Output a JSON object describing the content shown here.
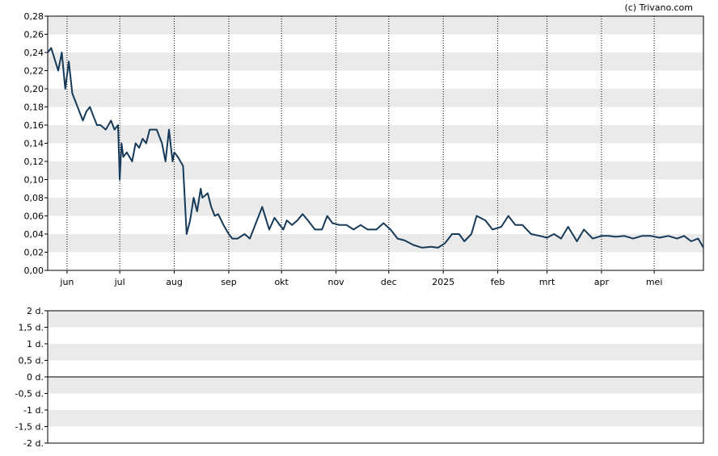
{
  "credit": "(c) Trivano.com",
  "colors": {
    "line": "#163a57",
    "band": "#eaeaea",
    "frame": "#000000",
    "background": "#ffffff"
  },
  "chart_data": [
    {
      "type": "line",
      "title": "",
      "xlabel": "",
      "ylabel": "",
      "grid": true,
      "x_tick_labels": [
        "jun",
        "jul",
        "aug",
        "sep",
        "okt",
        "nov",
        "dec",
        "2025",
        "feb",
        "mrt",
        "apr",
        "mei"
      ],
      "y_tick_labels": [
        "0,00",
        "0,02",
        "0,04",
        "0,06",
        "0,08",
        "0,10",
        "0,12",
        "0,14",
        "0,16",
        "0,18",
        "0,20",
        "0,22",
        "0,24",
        "0,26",
        "0,28"
      ],
      "ylim": [
        0,
        0.28
      ],
      "xlim": [
        "2024-05-21",
        "2025-05-29"
      ],
      "series": [
        {
          "x": [
            "2024-05-21",
            "2024-05-23",
            "2024-05-27",
            "2024-05-29",
            "2024-05-31",
            "2024-06-02",
            "2024-06-04",
            "2024-06-06",
            "2024-06-08",
            "2024-06-10",
            "2024-06-12",
            "2024-06-14",
            "2024-06-16",
            "2024-06-18",
            "2024-06-20",
            "2024-06-23",
            "2024-06-26",
            "2024-06-28",
            "2024-06-30",
            "2024-07-01",
            "2024-07-02",
            "2024-07-03",
            "2024-07-05",
            "2024-07-08",
            "2024-07-10",
            "2024-07-12",
            "2024-07-14",
            "2024-07-16",
            "2024-07-18",
            "2024-07-22",
            "2024-07-25",
            "2024-07-27",
            "2024-07-29",
            "2024-07-31",
            "2024-08-01",
            "2024-08-03",
            "2024-08-06",
            "2024-08-08",
            "2024-08-10",
            "2024-08-12",
            "2024-08-14",
            "2024-08-16",
            "2024-08-17",
            "2024-08-20",
            "2024-08-22",
            "2024-08-24",
            "2024-08-26",
            "2024-08-29",
            "2024-09-01",
            "2024-09-03",
            "2024-09-06",
            "2024-09-10",
            "2024-09-13",
            "2024-09-16",
            "2024-09-20",
            "2024-09-24",
            "2024-09-27",
            "2024-09-30",
            "2024-10-02",
            "2024-10-04",
            "2024-10-07",
            "2024-10-10",
            "2024-10-13",
            "2024-10-16",
            "2024-10-20",
            "2024-10-24",
            "2024-10-27",
            "2024-10-30",
            "2024-11-03",
            "2024-11-07",
            "2024-11-11",
            "2024-11-15",
            "2024-11-19",
            "2024-11-24",
            "2024-11-28",
            "2024-12-02",
            "2024-12-06",
            "2024-12-10",
            "2024-12-15",
            "2024-12-20",
            "2024-12-25",
            "2024-12-29",
            "2025-01-02",
            "2025-01-06",
            "2025-01-10",
            "2025-01-13",
            "2025-01-17",
            "2025-01-20",
            "2025-01-25",
            "2025-01-29",
            "2025-02-03",
            "2025-02-07",
            "2025-02-11",
            "2025-02-15",
            "2025-02-20",
            "2025-02-25",
            "2025-03-01",
            "2025-03-05",
            "2025-03-09",
            "2025-03-13",
            "2025-03-18",
            "2025-03-22",
            "2025-03-27",
            "2025-04-01",
            "2025-04-05",
            "2025-04-09",
            "2025-04-14",
            "2025-04-19",
            "2025-04-24",
            "2025-04-29",
            "2025-05-04",
            "2025-05-09",
            "2025-05-14",
            "2025-05-18",
            "2025-05-22",
            "2025-05-26",
            "2025-05-29"
          ],
          "y": [
            0.24,
            0.245,
            0.22,
            0.24,
            0.2,
            0.23,
            0.195,
            0.185,
            0.175,
            0.165,
            0.175,
            0.18,
            0.17,
            0.16,
            0.16,
            0.155,
            0.165,
            0.155,
            0.16,
            0.1,
            0.14,
            0.125,
            0.13,
            0.12,
            0.14,
            0.135,
            0.145,
            0.14,
            0.155,
            0.155,
            0.14,
            0.12,
            0.155,
            0.12,
            0.13,
            0.125,
            0.115,
            0.04,
            0.055,
            0.08,
            0.065,
            0.09,
            0.08,
            0.085,
            0.07,
            0.06,
            0.062,
            0.05,
            0.04,
            0.035,
            0.035,
            0.04,
            0.035,
            0.05,
            0.07,
            0.045,
            0.058,
            0.05,
            0.045,
            0.055,
            0.05,
            0.055,
            0.062,
            0.055,
            0.045,
            0.045,
            0.06,
            0.052,
            0.05,
            0.05,
            0.045,
            0.05,
            0.045,
            0.045,
            0.052,
            0.045,
            0.035,
            0.033,
            0.028,
            0.025,
            0.026,
            0.025,
            0.03,
            0.04,
            0.04,
            0.032,
            0.04,
            0.06,
            0.055,
            0.045,
            0.048,
            0.06,
            0.05,
            0.05,
            0.04,
            0.038,
            0.036,
            0.04,
            0.035,
            0.048,
            0.032,
            0.045,
            0.035,
            0.038,
            0.038,
            0.037,
            0.038,
            0.035,
            0.038,
            0.038,
            0.036,
            0.038,
            0.035,
            0.038,
            0.032,
            0.035,
            0.025
          ]
        }
      ]
    },
    {
      "type": "line",
      "title": "",
      "xlabel": "",
      "ylabel": "",
      "grid": true,
      "y_tick_labels": [
        "2 d.",
        "1,5 d.",
        "1 d.",
        "0,5 d.",
        "0 d.",
        "-0,5 d.",
        "-1 d.",
        "-1,5 d.",
        "-2 d."
      ],
      "ylim": [
        -2,
        2
      ],
      "series": []
    }
  ]
}
